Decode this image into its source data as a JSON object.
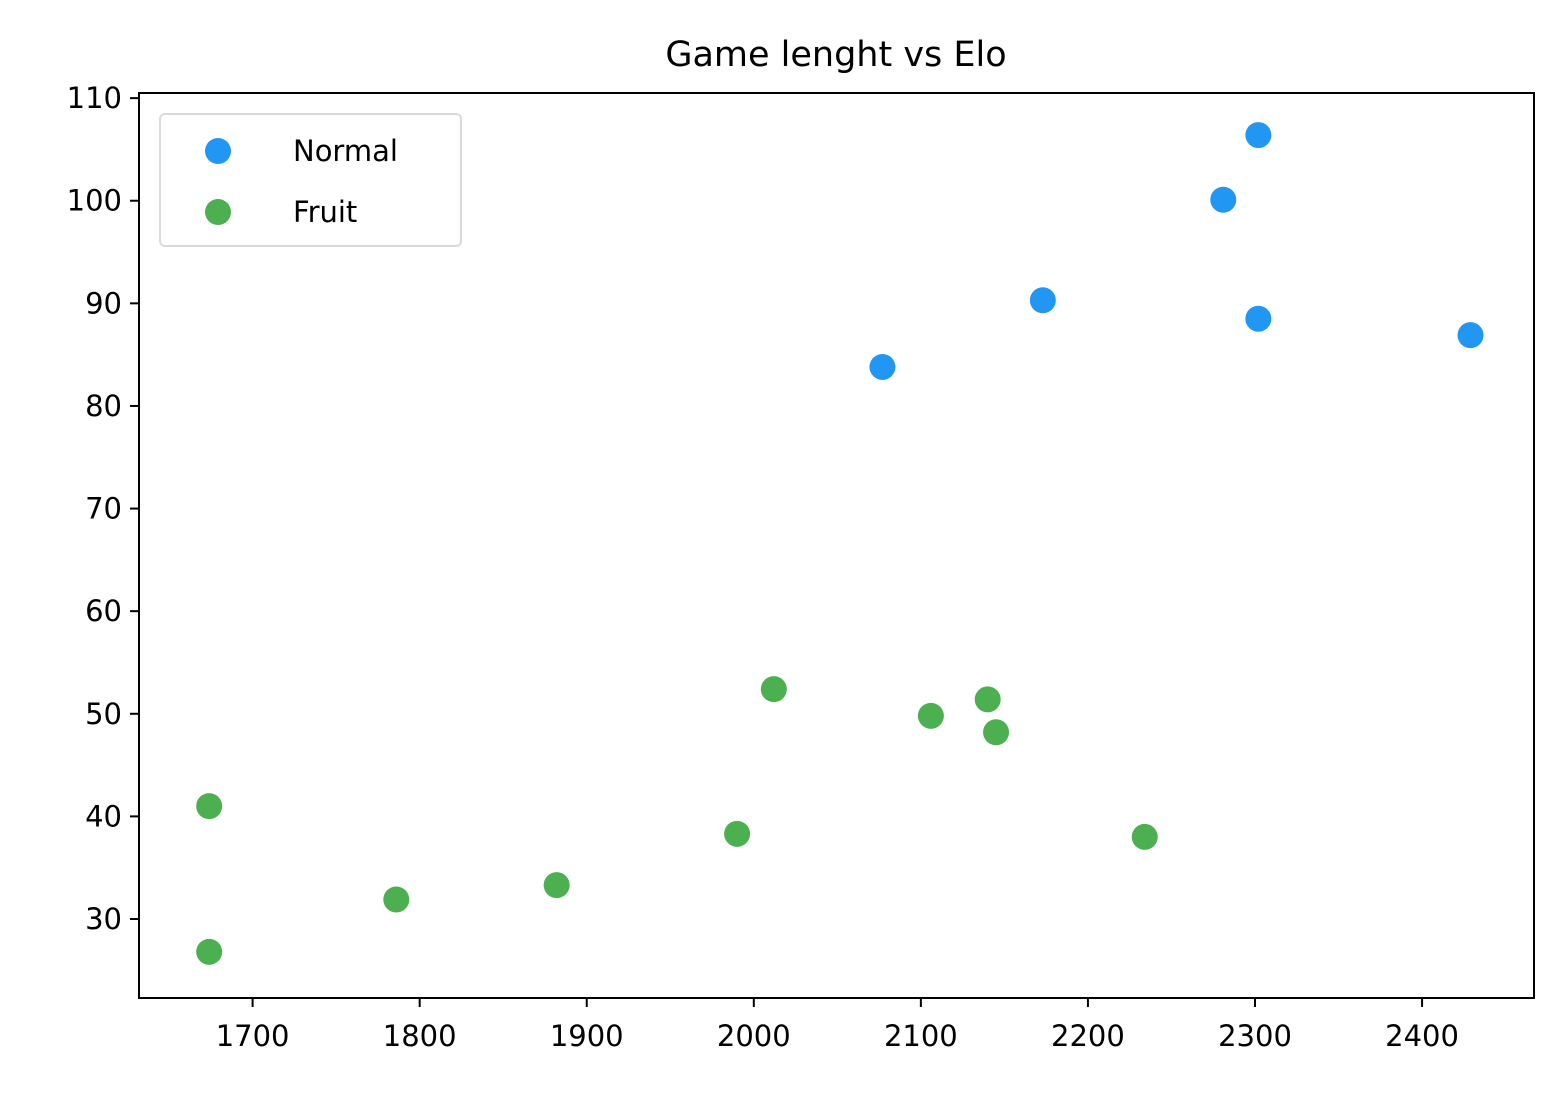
{
  "chart_data": {
    "type": "scatter",
    "title": "Game lenght vs Elo",
    "xlabel": "",
    "ylabel": "",
    "xlim": [
      1632,
      2467
    ],
    "ylim": [
      22.3,
      110.5
    ],
    "x_ticks": [
      1700,
      1800,
      1900,
      2000,
      2100,
      2200,
      2300,
      2400
    ],
    "y_ticks": [
      30,
      40,
      50,
      60,
      70,
      80,
      90,
      100,
      110
    ],
    "grid": false,
    "legend_position": "top-left",
    "series": [
      {
        "name": "Normal",
        "color": "#2196f3",
        "points": [
          {
            "x": 2077,
            "y": 83.8
          },
          {
            "x": 2173,
            "y": 90.3
          },
          {
            "x": 2281,
            "y": 100.1
          },
          {
            "x": 2302,
            "y": 106.4
          },
          {
            "x": 2302,
            "y": 88.5
          },
          {
            "x": 2429,
            "y": 86.9
          }
        ]
      },
      {
        "name": "Fruit",
        "color": "#4caf50",
        "points": [
          {
            "x": 1674,
            "y": 41.0
          },
          {
            "x": 1674,
            "y": 26.8
          },
          {
            "x": 1786,
            "y": 31.9
          },
          {
            "x": 1882,
            "y": 33.3
          },
          {
            "x": 1990,
            "y": 38.3
          },
          {
            "x": 2012,
            "y": 52.4
          },
          {
            "x": 2106,
            "y": 49.8
          },
          {
            "x": 2140,
            "y": 51.4
          },
          {
            "x": 2145,
            "y": 48.2
          },
          {
            "x": 2234,
            "y": 38.0
          }
        ]
      }
    ]
  }
}
